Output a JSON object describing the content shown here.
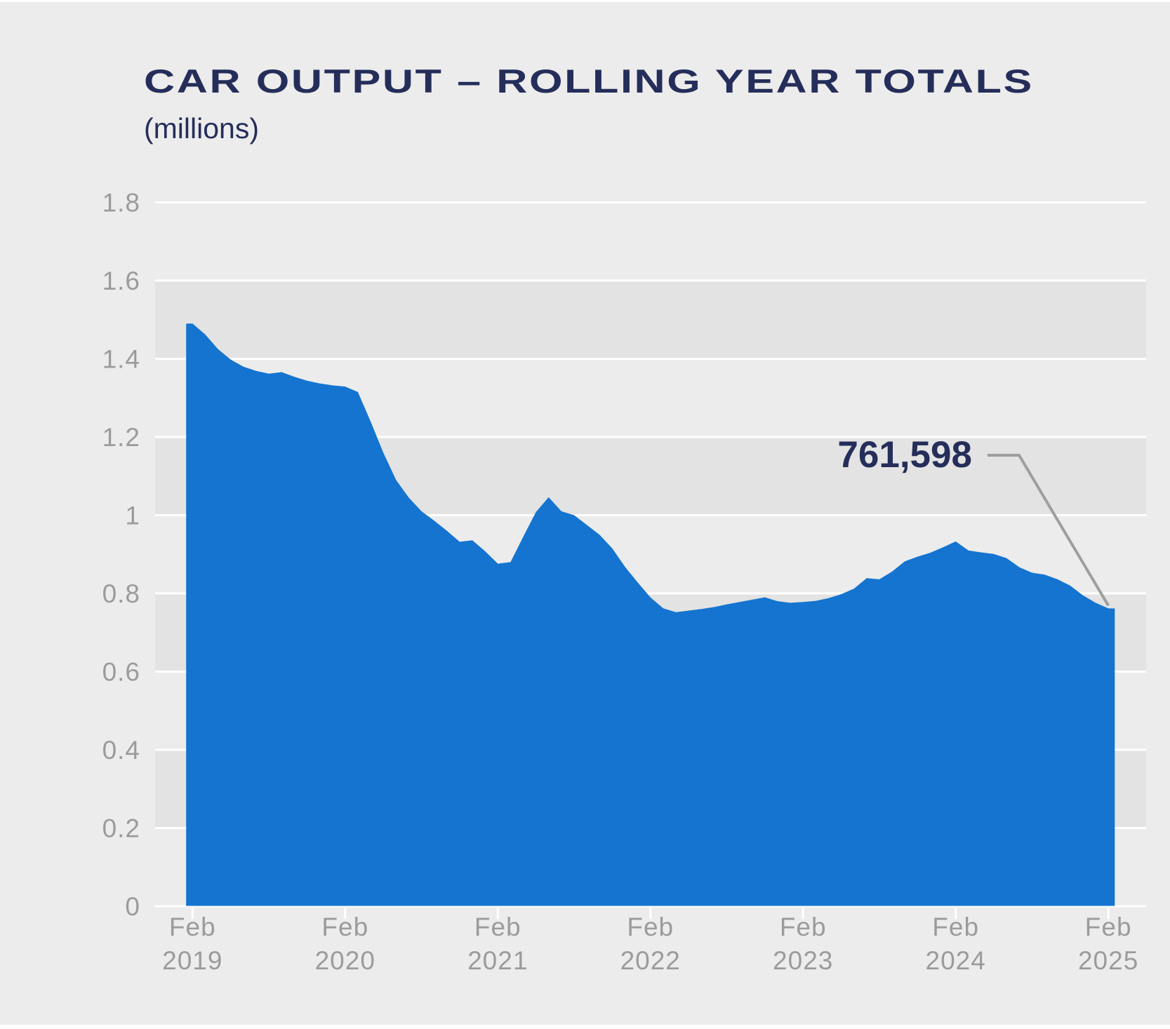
{
  "header": {
    "title": "CAR OUTPUT – ROLLING YEAR TOTALS",
    "subtitle": "(millions)"
  },
  "annotation": {
    "label": "761,598"
  },
  "colors": {
    "page_background": "#ececec",
    "band_fill": "#e3e3e3",
    "gridline": "#ffffff",
    "axis_text": "#9b9b9b",
    "navy_text": "#252e5a",
    "area_fill": "#1474d0",
    "callout_line": "#9e9e9e",
    "edge_strip": "#ffffff"
  },
  "chart_data": {
    "type": "area",
    "title": "CAR OUTPUT – ROLLING YEAR TOTALS",
    "unit_label": "(millions)",
    "series_name": "Car output rolling year total",
    "frequency": "monthly",
    "x_start": "Feb 2019",
    "x_end": "Feb 2025",
    "x_tick_labels": [
      [
        "Feb",
        "2019"
      ],
      [
        "Feb",
        "2020"
      ],
      [
        "Feb",
        "2021"
      ],
      [
        "Feb",
        "2022"
      ],
      [
        "Feb",
        "2023"
      ],
      [
        "Feb",
        "2024"
      ],
      [
        "Feb",
        "2025"
      ]
    ],
    "x_tick_month_indices": [
      0,
      12,
      24,
      36,
      48,
      60,
      72
    ],
    "y_tick_labels": [
      "0",
      "0.2",
      "0.4",
      "0.6",
      "0.8",
      "1",
      "1.2",
      "1.4",
      "1.6",
      "1.8"
    ],
    "ylim": [
      0,
      1.8
    ],
    "grid": "horizontal white gridlines with alternating gray bands",
    "legend_position": "none",
    "values_millions": [
      1.49,
      1.462,
      1.425,
      1.398,
      1.38,
      1.369,
      1.362,
      1.366,
      1.354,
      1.344,
      1.337,
      1.332,
      1.329,
      1.315,
      1.24,
      1.16,
      1.09,
      1.045,
      1.01,
      0.986,
      0.96,
      0.932,
      0.936,
      0.908,
      0.876,
      0.88,
      0.945,
      1.008,
      1.046,
      1.01,
      1.0,
      0.975,
      0.95,
      0.915,
      0.868,
      0.828,
      0.79,
      0.762,
      0.752,
      0.756,
      0.76,
      0.765,
      0.772,
      0.778,
      0.784,
      0.79,
      0.78,
      0.776,
      0.778,
      0.781,
      0.788,
      0.798,
      0.812,
      0.839,
      0.836,
      0.856,
      0.882,
      0.894,
      0.904,
      0.918,
      0.933,
      0.91,
      0.905,
      0.901,
      0.89,
      0.867,
      0.853,
      0.848,
      0.836,
      0.82,
      0.795,
      0.776,
      0.7616
    ],
    "last_point": {
      "x": "Feb 2025",
      "value_millions": 0.7616,
      "label": "761,598"
    }
  }
}
